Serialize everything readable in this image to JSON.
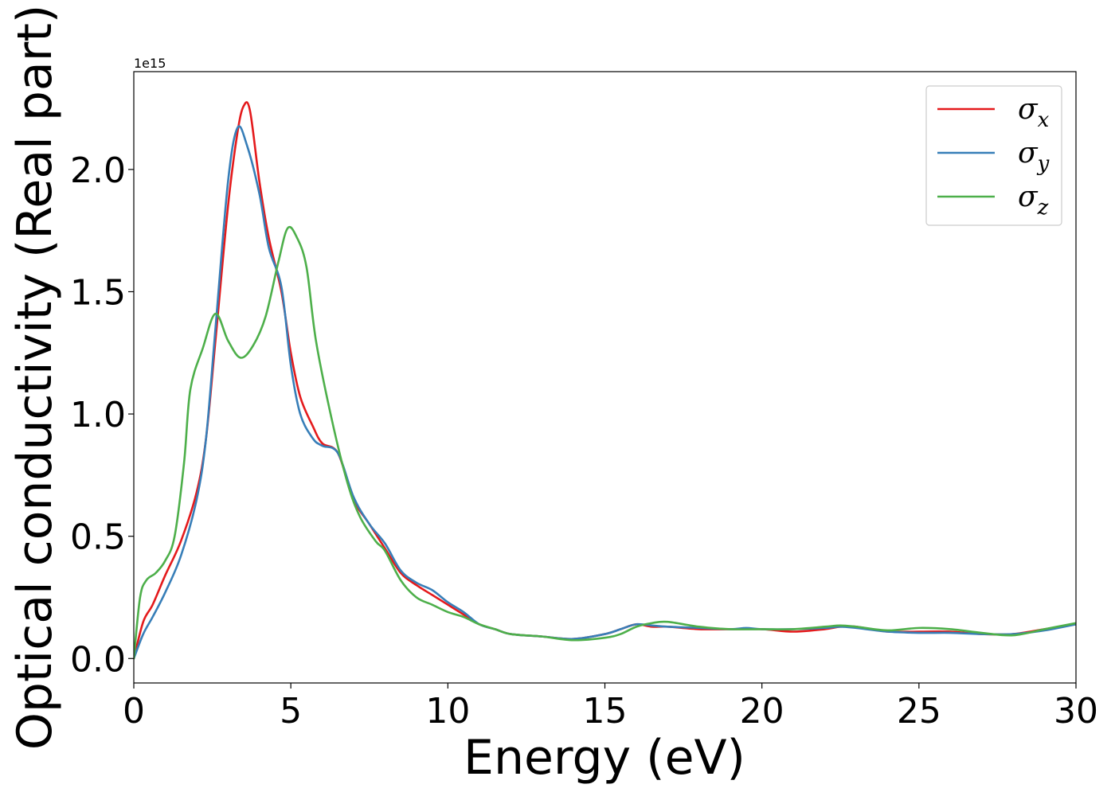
{
  "chart_data": {
    "type": "line",
    "xlabel": "Energy (eV)",
    "ylabel": "Optical conductivity (Real part)",
    "y_offset_text": "1e15",
    "y_multiplier": 1000000000000000.0,
    "xlim": [
      0,
      30
    ],
    "ylim": [
      -0.1,
      2.4
    ],
    "x_ticks": [
      0,
      5,
      10,
      15,
      20,
      25,
      30
    ],
    "x_tick_labels": [
      "0",
      "5",
      "10",
      "15",
      "20",
      "25",
      "30"
    ],
    "y_ticks": [
      0.0,
      0.5,
      1.0,
      1.5,
      2.0
    ],
    "y_tick_labels": [
      "0.0",
      "0.5",
      "1.0",
      "1.5",
      "2.0"
    ],
    "grid": false,
    "legend_position": "top-right",
    "series": [
      {
        "name": "σx",
        "legend_base": "σ",
        "legend_sub": "x",
        "color": "#e41a1c",
        "points": [
          [
            0,
            0
          ],
          [
            0.3,
            0.15
          ],
          [
            0.6,
            0.22
          ],
          [
            1,
            0.34
          ],
          [
            1.5,
            0.48
          ],
          [
            2,
            0.68
          ],
          [
            2.3,
            0.9
          ],
          [
            2.6,
            1.3
          ],
          [
            3,
            1.85
          ],
          [
            3.3,
            2.15
          ],
          [
            3.5,
            2.26
          ],
          [
            3.7,
            2.24
          ],
          [
            4,
            1.95
          ],
          [
            4.3,
            1.72
          ],
          [
            4.7,
            1.5
          ],
          [
            5,
            1.25
          ],
          [
            5.3,
            1.07
          ],
          [
            5.7,
            0.95
          ],
          [
            6,
            0.88
          ],
          [
            6.5,
            0.84
          ],
          [
            7,
            0.65
          ],
          [
            7.5,
            0.55
          ],
          [
            8,
            0.45
          ],
          [
            8.5,
            0.35
          ],
          [
            9,
            0.3
          ],
          [
            9.5,
            0.26
          ],
          [
            10,
            0.22
          ],
          [
            10.5,
            0.18
          ],
          [
            11,
            0.14
          ],
          [
            11.5,
            0.12
          ],
          [
            12,
            0.1
          ],
          [
            13,
            0.09
          ],
          [
            14,
            0.08
          ],
          [
            15,
            0.1
          ],
          [
            15.5,
            0.12
          ],
          [
            16,
            0.14
          ],
          [
            16.5,
            0.13
          ],
          [
            17,
            0.13
          ],
          [
            18,
            0.12
          ],
          [
            19,
            0.12
          ],
          [
            20,
            0.12
          ],
          [
            21,
            0.11
          ],
          [
            22,
            0.12
          ],
          [
            22.5,
            0.13
          ],
          [
            23,
            0.13
          ],
          [
            24,
            0.11
          ],
          [
            25,
            0.11
          ],
          [
            26,
            0.11
          ],
          [
            27,
            0.1
          ],
          [
            28,
            0.1
          ],
          [
            29,
            0.12
          ],
          [
            30,
            0.14
          ]
        ]
      },
      {
        "name": "σy",
        "legend_base": "σ",
        "legend_sub": "y",
        "color": "#377eb8",
        "points": [
          [
            0,
            0
          ],
          [
            0.3,
            0.1
          ],
          [
            0.6,
            0.17
          ],
          [
            1,
            0.27
          ],
          [
            1.5,
            0.42
          ],
          [
            2,
            0.65
          ],
          [
            2.3,
            0.9
          ],
          [
            2.6,
            1.35
          ],
          [
            3,
            1.95
          ],
          [
            3.3,
            2.17
          ],
          [
            3.6,
            2.1
          ],
          [
            4,
            1.9
          ],
          [
            4.3,
            1.68
          ],
          [
            4.7,
            1.52
          ],
          [
            5,
            1.2
          ],
          [
            5.3,
            1.0
          ],
          [
            5.7,
            0.9
          ],
          [
            6,
            0.87
          ],
          [
            6.5,
            0.84
          ],
          [
            7,
            0.66
          ],
          [
            7.5,
            0.55
          ],
          [
            8,
            0.47
          ],
          [
            8.5,
            0.36
          ],
          [
            9,
            0.31
          ],
          [
            9.5,
            0.28
          ],
          [
            10,
            0.23
          ],
          [
            10.5,
            0.19
          ],
          [
            11,
            0.14
          ],
          [
            11.5,
            0.12
          ],
          [
            12,
            0.1
          ],
          [
            13,
            0.09
          ],
          [
            14,
            0.08
          ],
          [
            15,
            0.1
          ],
          [
            15.5,
            0.12
          ],
          [
            16,
            0.14
          ],
          [
            16.5,
            0.135
          ],
          [
            17,
            0.13
          ],
          [
            18,
            0.125
          ],
          [
            19,
            0.12
          ],
          [
            19.5,
            0.125
          ],
          [
            20,
            0.12
          ],
          [
            21,
            0.12
          ],
          [
            22,
            0.125
          ],
          [
            22.5,
            0.13
          ],
          [
            23,
            0.125
          ],
          [
            24,
            0.11
          ],
          [
            25,
            0.105
          ],
          [
            26,
            0.105
          ],
          [
            27,
            0.1
          ],
          [
            28,
            0.1
          ],
          [
            29,
            0.115
          ],
          [
            30,
            0.14
          ]
        ]
      },
      {
        "name": "σz",
        "legend_base": "σ",
        "legend_sub": "z",
        "color": "#4daf4a",
        "points": [
          [
            0,
            0
          ],
          [
            0.2,
            0.25
          ],
          [
            0.4,
            0.32
          ],
          [
            0.7,
            0.35
          ],
          [
            1,
            0.4
          ],
          [
            1.3,
            0.5
          ],
          [
            1.6,
            0.8
          ],
          [
            1.8,
            1.1
          ],
          [
            2.2,
            1.27
          ],
          [
            2.6,
            1.41
          ],
          [
            3,
            1.3
          ],
          [
            3.4,
            1.23
          ],
          [
            3.8,
            1.28
          ],
          [
            4.2,
            1.4
          ],
          [
            4.6,
            1.62
          ],
          [
            4.9,
            1.76
          ],
          [
            5.2,
            1.72
          ],
          [
            5.5,
            1.6
          ],
          [
            5.8,
            1.3
          ],
          [
            6.3,
            0.98
          ],
          [
            6.8,
            0.72
          ],
          [
            7.2,
            0.58
          ],
          [
            7.7,
            0.48
          ],
          [
            8,
            0.44
          ],
          [
            8.5,
            0.32
          ],
          [
            9,
            0.25
          ],
          [
            9.5,
            0.22
          ],
          [
            10,
            0.19
          ],
          [
            10.5,
            0.17
          ],
          [
            11,
            0.14
          ],
          [
            11.5,
            0.12
          ],
          [
            12,
            0.1
          ],
          [
            13,
            0.09
          ],
          [
            14,
            0.075
          ],
          [
            15,
            0.085
          ],
          [
            15.5,
            0.1
          ],
          [
            16,
            0.13
          ],
          [
            16.5,
            0.145
          ],
          [
            17,
            0.15
          ],
          [
            18,
            0.13
          ],
          [
            19,
            0.12
          ],
          [
            20,
            0.12
          ],
          [
            21,
            0.12
          ],
          [
            22,
            0.13
          ],
          [
            22.5,
            0.135
          ],
          [
            23,
            0.13
          ],
          [
            24,
            0.115
          ],
          [
            25,
            0.125
          ],
          [
            26,
            0.12
          ],
          [
            27,
            0.105
          ],
          [
            28,
            0.095
          ],
          [
            29,
            0.12
          ],
          [
            30,
            0.145
          ]
        ]
      }
    ]
  }
}
